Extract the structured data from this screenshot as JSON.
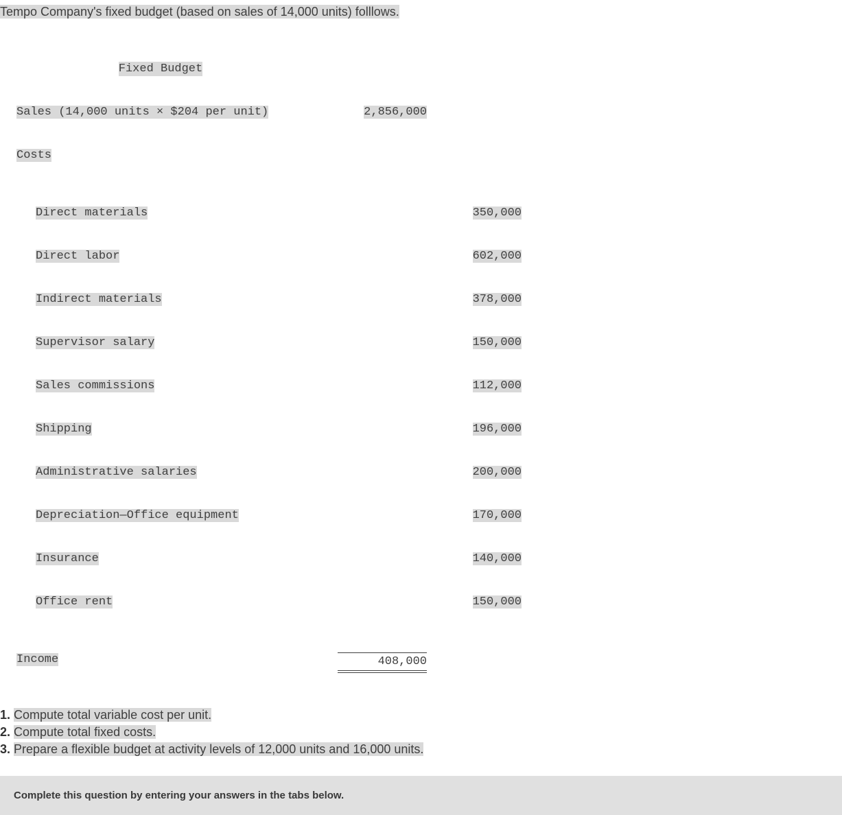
{
  "intro_text": "Tempo Company's fixed budget (based on sales of 14,000 units) folllows.",
  "budget": {
    "title": "Fixed Budget",
    "sales_label": "Sales (14,000 units × $204 per unit)",
    "sales_value": "2,856,000",
    "costs_label": "Costs",
    "cost_rows": [
      {
        "label": "Direct materials",
        "value": "350,000"
      },
      {
        "label": "Direct labor",
        "value": "602,000"
      },
      {
        "label": "Indirect materials",
        "value": "378,000"
      },
      {
        "label": "Supervisor salary",
        "value": "150,000"
      },
      {
        "label": "Sales commissions",
        "value": "112,000"
      },
      {
        "label": "Shipping",
        "value": "196,000"
      },
      {
        "label": "Administrative salaries",
        "value": "200,000"
      },
      {
        "label": "Depreciation—Office equipment",
        "value": "170,000"
      },
      {
        "label": "Insurance",
        "value": "140,000"
      },
      {
        "label": "Office rent",
        "value": "150,000"
      }
    ],
    "income_label": "Income",
    "income_value": "408,000"
  },
  "questions": {
    "q1_num": "1.",
    "q1_text": "Compute total variable cost per unit.",
    "q2_num": "2.",
    "q2_text": "Compute total fixed costs.",
    "q3_num": "3.",
    "q3_text": "Prepare a flexible budget at activity levels of 12,000 units and 16,000 units."
  },
  "answer_box_text": "Complete this question by entering your answers in the tabs below.",
  "colors": {
    "highlight_bg": "#d9d9d9",
    "text_color": "#3f3f3f",
    "mono_color": "#404040",
    "answer_bg": "#e0e0e0"
  },
  "typography": {
    "body_family": "Verdana",
    "mono_family": "Courier New",
    "body_size_pt": 14,
    "mono_size_pt": 13,
    "answer_size_pt": 11
  }
}
